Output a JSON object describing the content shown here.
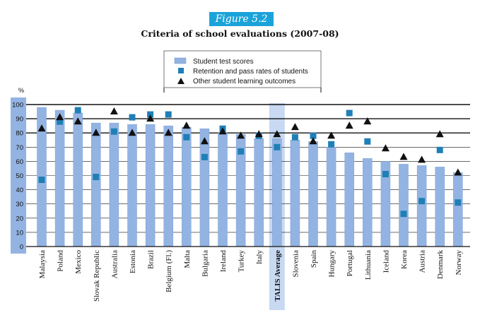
{
  "figure_label": "Figure 5.2",
  "chart_data": {
    "type": "bar",
    "title": "Criteria of school evaluations (2007-08)",
    "ylabel": "%",
    "ylim": [
      0,
      100
    ],
    "yticks": [
      0,
      10,
      20,
      30,
      40,
      50,
      60,
      70,
      80,
      90,
      100
    ],
    "highlight_category": "TALIS Average",
    "categories": [
      "Malaysia",
      "Poland",
      "Mexico",
      "Slovak Republic",
      "Australia",
      "Estonia",
      "Brazil",
      "Belgium (Fl.)",
      "Malta",
      "Bulgaria",
      "Ireland",
      "Turkey",
      "Italy",
      "TALIS Average",
      "Slovenia",
      "Spain",
      "Hungary",
      "Portugal",
      "Lithuania",
      "Iceland",
      "Korea",
      "Austria",
      "Denmark",
      "Norway"
    ],
    "series": [
      {
        "name": "Student test scores",
        "marker": "bar",
        "color": "#93b4e3",
        "values": [
          98,
          96,
          94,
          87,
          87,
          86,
          86,
          85,
          84,
          83,
          80,
          79,
          76,
          76,
          75,
          74,
          70,
          66,
          62,
          60,
          58,
          57,
          56,
          52
        ]
      },
      {
        "name": "Retention and pass rates of students",
        "marker": "square",
        "color": "#1f7fb6",
        "values": [
          47,
          88,
          96,
          49,
          81,
          91,
          93,
          93,
          77,
          63,
          83,
          67,
          78,
          70,
          77,
          78,
          72,
          94,
          74,
          51,
          23,
          32,
          68,
          31
        ]
      },
      {
        "name": "Other student learning outcomes",
        "marker": "triangle",
        "color": "#111111",
        "values": [
          83,
          91,
          88,
          80,
          95,
          80,
          90,
          80,
          85,
          74,
          81,
          78,
          79,
          79,
          84,
          74,
          78,
          85,
          88,
          69,
          63,
          61,
          79,
          52
        ]
      }
    ]
  }
}
